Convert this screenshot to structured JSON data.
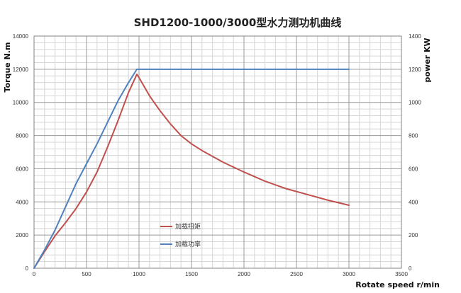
{
  "chart_data": {
    "type": "line",
    "title": "SHD1200-1000/3000型水力测功机曲线",
    "xlabel": "Rotate speed r/min",
    "ylabel_left": "Torque N.m",
    "ylabel_right": "power KW",
    "xlim": [
      0,
      3500
    ],
    "ylim_left": [
      0,
      14000
    ],
    "ylim_right": [
      0,
      1400
    ],
    "x_ticks": [
      "0",
      "500",
      "1000",
      "1500",
      "2000",
      "2500",
      "3000",
      "3500"
    ],
    "y_left_ticks": [
      "0",
      "2000",
      "4000",
      "6000",
      "8000",
      "10000",
      "12000",
      "14000"
    ],
    "y_right_ticks": [
      "0",
      "200",
      "400",
      "600",
      "800",
      "1000",
      "1200",
      "1400"
    ],
    "grid": true,
    "legend_position": "center-left",
    "series": [
      {
        "name": "加载扭矩",
        "axis": "left",
        "color": "#c0504d",
        "x": [
          0,
          100,
          200,
          300,
          400,
          500,
          600,
          700,
          800,
          900,
          980,
          1000,
          1100,
          1200,
          1300,
          1400,
          1500,
          1600,
          1800,
          2000,
          2200,
          2400,
          2600,
          2800,
          3000
        ],
        "y": [
          0,
          1000,
          1950,
          2750,
          3600,
          4600,
          5800,
          7300,
          8900,
          10600,
          11700,
          11500,
          10400,
          9500,
          8700,
          8000,
          7500,
          7100,
          6400,
          5800,
          5250,
          4800,
          4450,
          4100,
          3800
        ]
      },
      {
        "name": "加载功率",
        "axis": "right",
        "color": "#4f81bd",
        "x": [
          0,
          100,
          200,
          300,
          400,
          500,
          600,
          700,
          800,
          900,
          980,
          1000,
          1500,
          2000,
          2500,
          3000
        ],
        "y": [
          0,
          110,
          230,
          370,
          510,
          630,
          750,
          880,
          1010,
          1120,
          1200,
          1200,
          1200,
          1200,
          1200,
          1200
        ]
      }
    ]
  }
}
